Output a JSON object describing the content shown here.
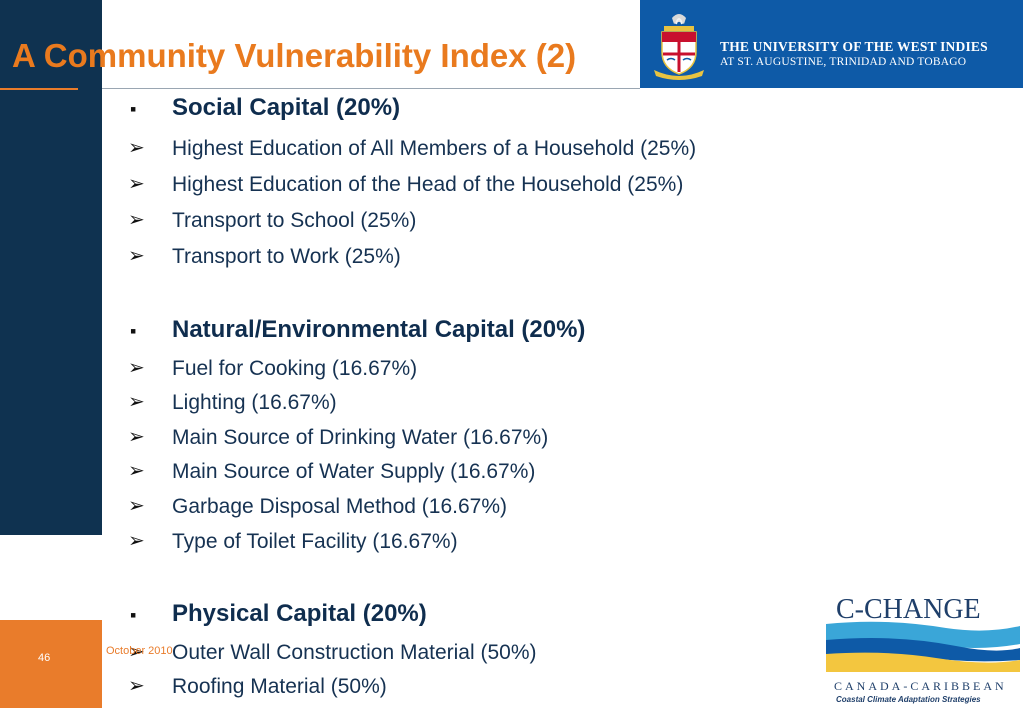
{
  "slide": {
    "title": "A Community Vulnerability Index (2)",
    "page_number": "46",
    "date": "October 2010"
  },
  "header": {
    "university": "THE UNIVERSITY OF THE WEST INDIES",
    "campus": "AT ST. AUGUSTINE, TRINIDAD AND TOBAGO",
    "logo": "uwi-crest",
    "banner_color": "#0e5aa7"
  },
  "sections": [
    {
      "heading": "Social Capital (20%)",
      "items": [
        "Highest Education of All Members of a Household (25%)",
        "Highest Education of the Head of the Household (25%)",
        "Transport to School (25%)",
        "Transport to Work (25%)"
      ]
    },
    {
      "heading": "Natural/Environmental Capital (20%)",
      "items": [
        "Fuel for Cooking (16.67%)",
        "Lighting (16.67%)",
        "Main Source of Drinking Water (16.67%)",
        "Main Source of Water Supply (16.67%)",
        "Garbage Disposal Method (16.67%)",
        "Type of Toilet Facility (16.67%)"
      ]
    },
    {
      "heading": "Physical Capital (20%)",
      "items": [
        "Outer Wall Construction Material (50%)",
        "Roofing Material (50%)"
      ]
    }
  ],
  "markers": {
    "heading": "▪",
    "item": "➢"
  },
  "cchange_logo": {
    "name": "C-CHANGE",
    "sub1": "CANADA-CARIBBEAN",
    "sub2": "Coastal Climate Adaptation Strategies"
  },
  "colors": {
    "accent": "#e97c2b",
    "navy": "#0f3250",
    "text": "#163252"
  }
}
